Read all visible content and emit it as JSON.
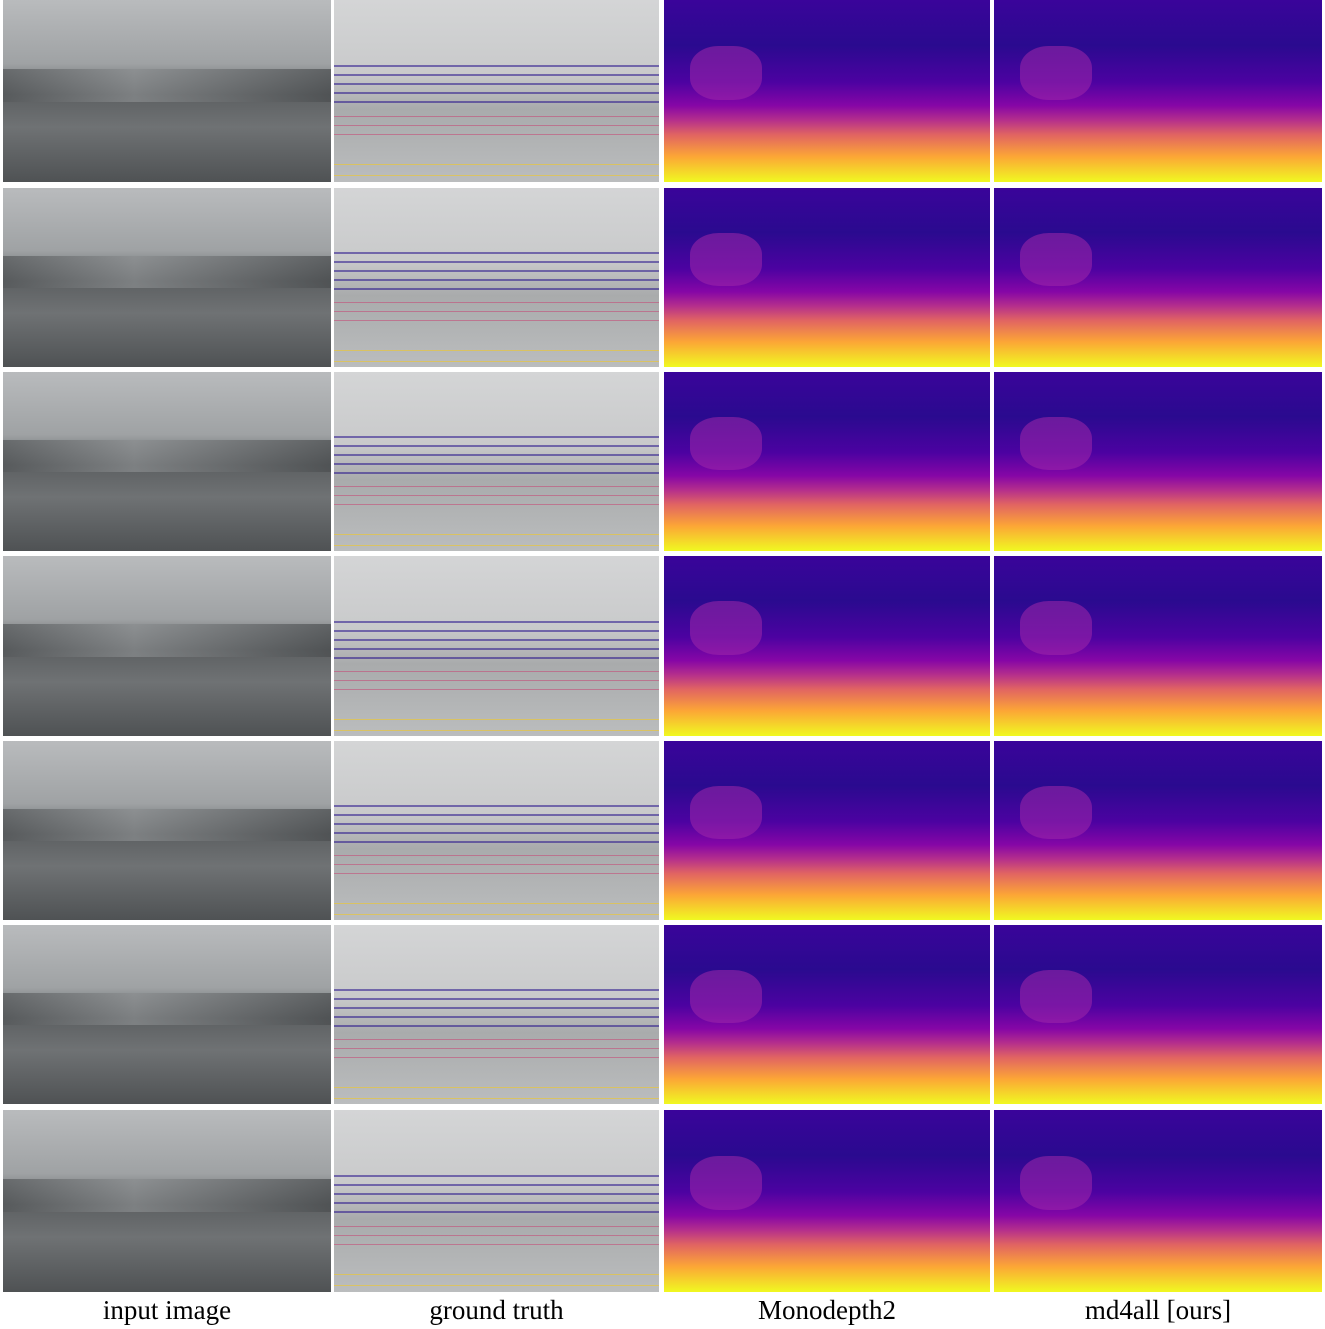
{
  "columns": [
    "input image",
    "ground truth",
    "Monodepth2",
    "md4all [ours]"
  ]
}
